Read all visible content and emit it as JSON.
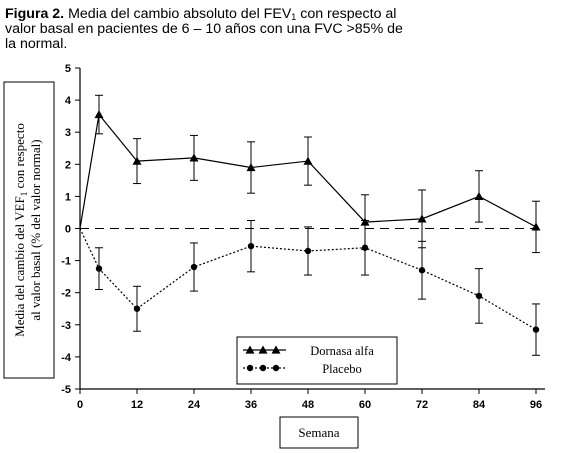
{
  "caption": {
    "figure_label": "Figura 2.",
    "line1_pre": "Media del cambio absoluto del FEV",
    "line1_sub": "1",
    "line1_post": " con respecto al",
    "line2": "valor basal en pacientes de 6 – 10 años con una FVC >85% de",
    "line3": "la normal."
  },
  "chart_data": {
    "type": "line",
    "xlabel": "Semana",
    "ylabel_line1_pre": "Media del cambio del VEF",
    "ylabel_line1_sub": "1",
    "ylabel_line1_post": " con respecto",
    "ylabel_line2": "al valor basal (% del valor normal)",
    "x": [
      0,
      12,
      24,
      36,
      48,
      60,
      72,
      84,
      96
    ],
    "xticks": [
      "0",
      "12",
      "24",
      "36",
      "48",
      "60",
      "72",
      "84",
      "96"
    ],
    "yticks": [
      "5",
      "4",
      "3",
      "2",
      "1",
      "0",
      "-1",
      "-2",
      "-3",
      "-4",
      "-5"
    ],
    "ylim": [
      -5,
      5
    ],
    "xlim": [
      0,
      100
    ],
    "reference_line": 0,
    "series": [
      {
        "name": "Dornasa alfa",
        "marker": "triangle",
        "line_style": "solid",
        "x": [
          0,
          4,
          12,
          24,
          36,
          48,
          60,
          72,
          84,
          96
        ],
        "y": [
          0,
          3.55,
          2.1,
          2.2,
          1.9,
          2.1,
          0.2,
          0.3,
          1.0,
          0.05
        ],
        "err": [
          0,
          0.6,
          0.7,
          0.7,
          0.8,
          0.75,
          0.85,
          0.9,
          0.8,
          0.8
        ]
      },
      {
        "name": "Placebo",
        "marker": "circle",
        "line_style": "dotted",
        "x": [
          0,
          4,
          12,
          24,
          36,
          48,
          60,
          72,
          84,
          96
        ],
        "y": [
          0,
          -1.25,
          -2.5,
          -1.2,
          -0.55,
          -0.7,
          -0.6,
          -1.3,
          -2.1,
          -3.15
        ],
        "err": [
          0,
          0.65,
          0.7,
          0.75,
          0.8,
          0.75,
          0.85,
          0.9,
          0.85,
          0.8
        ]
      }
    ]
  }
}
